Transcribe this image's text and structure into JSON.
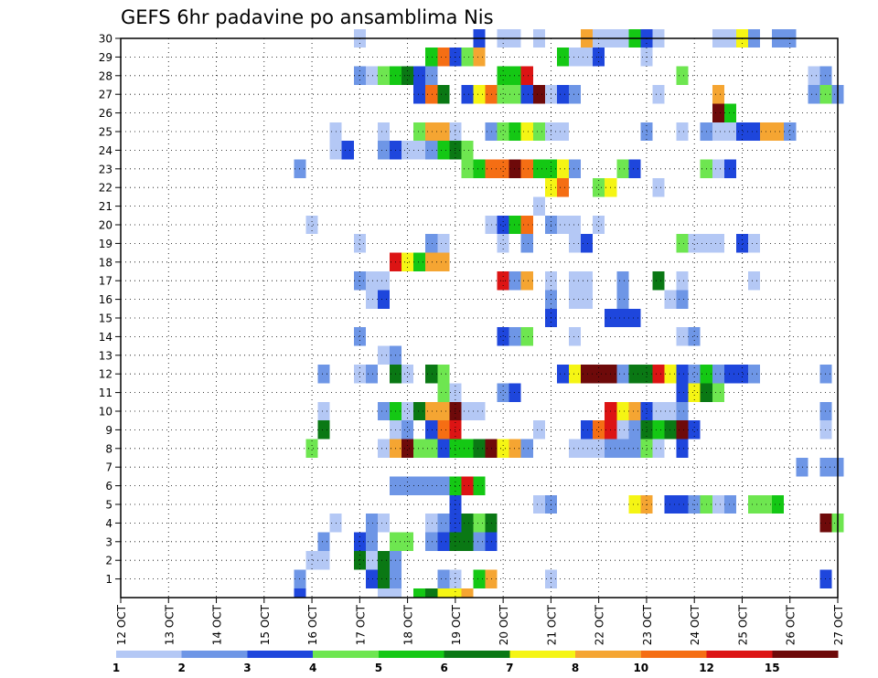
{
  "chart_data": {
    "type": "heatmap",
    "title": "GEFS 6hr padavine po ansamblima Nis",
    "x_tick_labels": [
      "12 OCT",
      "13 OCT",
      "14 OCT",
      "15 OCT",
      "16 OCT",
      "17 OCT",
      "18 OCT",
      "19 OCT",
      "20 OCT",
      "21 OCT",
      "22 OCT",
      "23 OCT",
      "24 OCT",
      "25 OCT",
      "26 OCT",
      "27 OCT"
    ],
    "y_tick_labels": [
      "1",
      "2",
      "3",
      "4",
      "5",
      "6",
      "7",
      "8",
      "9",
      "10",
      "11",
      "12",
      "13",
      "14",
      "15",
      "16",
      "17",
      "18",
      "19",
      "20",
      "21",
      "22",
      "23",
      "24",
      "25",
      "26",
      "27",
      "28",
      "29",
      "30"
    ],
    "xlim": [
      0,
      60
    ],
    "ylim": [
      0,
      30
    ],
    "grid": true,
    "colorbar": {
      "bounds": [
        "1",
        "2",
        "3",
        "4",
        "5",
        "6",
        "7",
        "8",
        "10",
        "12",
        "15",
        "20"
      ],
      "colors": [
        "#b4c8f5",
        "#6e96e6",
        "#1e46dc",
        "#6ee650",
        "#14c814",
        "#0a7814",
        "#f5f514",
        "#f5a532",
        "#f56e14",
        "#dc1414",
        "#6e0a0a"
      ]
    },
    "cells": [
      [
        15,
        1,
        1
      ],
      [
        21,
        1,
        2
      ],
      [
        22,
        1,
        5
      ],
      [
        23,
        1,
        1
      ],
      [
        27,
        1,
        1
      ],
      [
        28,
        1,
        0
      ],
      [
        30,
        1,
        4
      ],
      [
        31,
        1,
        7
      ],
      [
        36,
        1,
        0
      ],
      [
        59,
        1,
        2
      ],
      [
        16,
        2,
        0
      ],
      [
        17,
        2,
        0
      ],
      [
        20,
        2,
        5
      ],
      [
        21,
        2,
        0
      ],
      [
        22,
        2,
        5
      ],
      [
        23,
        2,
        1
      ],
      [
        17,
        3,
        1
      ],
      [
        20,
        3,
        2
      ],
      [
        21,
        3,
        1
      ],
      [
        23,
        3,
        3
      ],
      [
        24,
        3,
        3
      ],
      [
        26,
        3,
        1
      ],
      [
        27,
        3,
        2
      ],
      [
        28,
        3,
        5
      ],
      [
        29,
        3,
        5
      ],
      [
        30,
        3,
        1
      ],
      [
        31,
        3,
        2
      ],
      [
        18,
        4,
        0
      ],
      [
        21,
        4,
        1
      ],
      [
        22,
        4,
        0
      ],
      [
        26,
        4,
        0
      ],
      [
        27,
        4,
        1
      ],
      [
        28,
        4,
        2
      ],
      [
        29,
        4,
        5
      ],
      [
        30,
        4,
        3
      ],
      [
        31,
        4,
        5
      ],
      [
        59,
        4,
        10
      ],
      [
        60,
        4,
        3
      ],
      [
        28,
        5,
        2
      ],
      [
        35,
        5,
        0
      ],
      [
        36,
        5,
        1
      ],
      [
        43,
        5,
        6
      ],
      [
        44,
        5,
        7
      ],
      [
        46,
        5,
        2
      ],
      [
        47,
        5,
        2
      ],
      [
        48,
        5,
        1
      ],
      [
        49,
        5,
        3
      ],
      [
        50,
        5,
        0
      ],
      [
        51,
        5,
        1
      ],
      [
        53,
        5,
        3
      ],
      [
        54,
        5,
        3
      ],
      [
        55,
        5,
        4
      ],
      [
        23,
        6,
        1
      ],
      [
        24,
        6,
        1
      ],
      [
        25,
        6,
        1
      ],
      [
        26,
        6,
        1
      ],
      [
        27,
        6,
        1
      ],
      [
        28,
        6,
        4
      ],
      [
        29,
        6,
        9
      ],
      [
        30,
        6,
        4
      ],
      [
        57,
        7,
        1
      ],
      [
        59,
        7,
        1
      ],
      [
        60,
        7,
        1
      ],
      [
        16,
        8,
        3
      ],
      [
        22,
        8,
        0
      ],
      [
        23,
        8,
        7
      ],
      [
        24,
        8,
        10
      ],
      [
        25,
        8,
        3
      ],
      [
        26,
        8,
        3
      ],
      [
        27,
        8,
        2
      ],
      [
        28,
        8,
        4
      ],
      [
        29,
        8,
        4
      ],
      [
        30,
        8,
        5
      ],
      [
        31,
        8,
        10
      ],
      [
        32,
        8,
        6
      ],
      [
        33,
        8,
        7
      ],
      [
        34,
        8,
        1
      ],
      [
        38,
        8,
        0
      ],
      [
        39,
        8,
        0
      ],
      [
        40,
        8,
        0
      ],
      [
        41,
        8,
        1
      ],
      [
        42,
        8,
        1
      ],
      [
        43,
        8,
        1
      ],
      [
        44,
        8,
        3
      ],
      [
        45,
        8,
        0
      ],
      [
        47,
        8,
        2
      ],
      [
        17,
        9,
        5
      ],
      [
        23,
        9,
        0
      ],
      [
        24,
        9,
        1
      ],
      [
        26,
        9,
        2
      ],
      [
        27,
        9,
        8
      ],
      [
        28,
        9,
        9
      ],
      [
        35,
        9,
        0
      ],
      [
        39,
        9,
        2
      ],
      [
        40,
        9,
        8
      ],
      [
        41,
        9,
        9
      ],
      [
        42,
        9,
        0
      ],
      [
        43,
        9,
        1
      ],
      [
        44,
        9,
        5
      ],
      [
        45,
        9,
        4
      ],
      [
        46,
        9,
        5
      ],
      [
        47,
        9,
        10
      ],
      [
        48,
        9,
        2
      ],
      [
        59,
        9,
        0
      ],
      [
        17,
        10,
        0
      ],
      [
        22,
        10,
        1
      ],
      [
        23,
        10,
        4
      ],
      [
        24,
        10,
        0
      ],
      [
        25,
        10,
        5
      ],
      [
        26,
        10,
        7
      ],
      [
        27,
        10,
        7
      ],
      [
        28,
        10,
        10
      ],
      [
        29,
        10,
        0
      ],
      [
        30,
        10,
        0
      ],
      [
        41,
        10,
        9
      ],
      [
        42,
        10,
        6
      ],
      [
        43,
        10,
        7
      ],
      [
        44,
        10,
        2
      ],
      [
        45,
        10,
        0
      ],
      [
        46,
        10,
        0
      ],
      [
        47,
        10,
        1
      ],
      [
        59,
        10,
        1
      ],
      [
        27,
        11,
        3
      ],
      [
        28,
        11,
        0
      ],
      [
        32,
        11,
        1
      ],
      [
        33,
        11,
        2
      ],
      [
        47,
        11,
        2
      ],
      [
        48,
        11,
        6
      ],
      [
        49,
        11,
        5
      ],
      [
        50,
        11,
        3
      ],
      [
        17,
        12,
        1
      ],
      [
        20,
        12,
        0
      ],
      [
        21,
        12,
        1
      ],
      [
        23,
        12,
        5
      ],
      [
        24,
        12,
        0
      ],
      [
        26,
        12,
        5
      ],
      [
        27,
        12,
        3
      ],
      [
        37,
        12,
        2
      ],
      [
        38,
        12,
        6
      ],
      [
        39,
        12,
        10
      ],
      [
        40,
        12,
        10
      ],
      [
        41,
        12,
        10
      ],
      [
        42,
        12,
        1
      ],
      [
        43,
        12,
        5
      ],
      [
        44,
        12,
        5
      ],
      [
        45,
        12,
        9
      ],
      [
        46,
        12,
        6
      ],
      [
        47,
        12,
        2
      ],
      [
        48,
        12,
        1
      ],
      [
        49,
        12,
        4
      ],
      [
        50,
        12,
        1
      ],
      [
        51,
        12,
        2
      ],
      [
        52,
        12,
        2
      ],
      [
        53,
        12,
        1
      ],
      [
        59,
        12,
        1
      ],
      [
        22,
        13,
        0
      ],
      [
        23,
        13,
        1
      ],
      [
        20,
        14,
        1
      ],
      [
        32,
        14,
        2
      ],
      [
        33,
        14,
        1
      ],
      [
        34,
        14,
        3
      ],
      [
        38,
        14,
        0
      ],
      [
        47,
        14,
        0
      ],
      [
        48,
        14,
        1
      ],
      [
        36,
        15,
        2
      ],
      [
        41,
        15,
        2
      ],
      [
        42,
        15,
        2
      ],
      [
        43,
        15,
        2
      ],
      [
        21,
        16,
        0
      ],
      [
        22,
        16,
        2
      ],
      [
        36,
        16,
        1
      ],
      [
        38,
        16,
        0
      ],
      [
        39,
        16,
        0
      ],
      [
        42,
        16,
        1
      ],
      [
        46,
        16,
        0
      ],
      [
        47,
        16,
        1
      ],
      [
        20,
        17,
        1
      ],
      [
        21,
        17,
        0
      ],
      [
        22,
        17,
        0
      ],
      [
        32,
        17,
        9
      ],
      [
        33,
        17,
        1
      ],
      [
        34,
        17,
        7
      ],
      [
        36,
        17,
        0
      ],
      [
        38,
        17,
        0
      ],
      [
        39,
        17,
        0
      ],
      [
        42,
        17,
        1
      ],
      [
        45,
        17,
        5
      ],
      [
        47,
        17,
        0
      ],
      [
        53,
        17,
        0
      ],
      [
        23,
        18,
        9
      ],
      [
        24,
        18,
        6
      ],
      [
        25,
        18,
        4
      ],
      [
        26,
        18,
        7
      ],
      [
        27,
        18,
        7
      ],
      [
        20,
        19,
        0
      ],
      [
        26,
        19,
        1
      ],
      [
        27,
        19,
        0
      ],
      [
        32,
        19,
        0
      ],
      [
        34,
        19,
        1
      ],
      [
        38,
        19,
        0
      ],
      [
        39,
        19,
        2
      ],
      [
        47,
        19,
        3
      ],
      [
        48,
        19,
        0
      ],
      [
        49,
        19,
        0
      ],
      [
        50,
        19,
        0
      ],
      [
        52,
        19,
        2
      ],
      [
        53,
        19,
        0
      ],
      [
        16,
        20,
        0
      ],
      [
        31,
        20,
        0
      ],
      [
        32,
        20,
        2
      ],
      [
        33,
        20,
        4
      ],
      [
        34,
        20,
        8
      ],
      [
        36,
        20,
        1
      ],
      [
        37,
        20,
        0
      ],
      [
        38,
        20,
        0
      ],
      [
        40,
        20,
        0
      ],
      [
        35,
        21,
        0
      ],
      [
        36,
        22,
        6
      ],
      [
        37,
        22,
        8
      ],
      [
        40,
        22,
        3
      ],
      [
        41,
        22,
        6
      ],
      [
        45,
        22,
        0
      ],
      [
        15,
        23,
        1
      ],
      [
        29,
        23,
        3
      ],
      [
        30,
        23,
        4
      ],
      [
        31,
        23,
        8
      ],
      [
        32,
        23,
        8
      ],
      [
        33,
        23,
        10
      ],
      [
        34,
        23,
        8
      ],
      [
        35,
        23,
        4
      ],
      [
        36,
        23,
        4
      ],
      [
        37,
        23,
        6
      ],
      [
        38,
        23,
        1
      ],
      [
        42,
        23,
        3
      ],
      [
        43,
        23,
        2
      ],
      [
        49,
        23,
        3
      ],
      [
        50,
        23,
        0
      ],
      [
        51,
        23,
        2
      ],
      [
        18,
        24,
        0
      ],
      [
        19,
        24,
        2
      ],
      [
        22,
        24,
        1
      ],
      [
        23,
        24,
        2
      ],
      [
        24,
        24,
        0
      ],
      [
        25,
        24,
        0
      ],
      [
        26,
        24,
        1
      ],
      [
        27,
        24,
        4
      ],
      [
        28,
        24,
        5
      ],
      [
        29,
        24,
        3
      ],
      [
        18,
        25,
        0
      ],
      [
        22,
        25,
        0
      ],
      [
        25,
        25,
        3
      ],
      [
        26,
        25,
        7
      ],
      [
        27,
        25,
        7
      ],
      [
        28,
        25,
        0
      ],
      [
        31,
        25,
        1
      ],
      [
        32,
        25,
        3
      ],
      [
        33,
        25,
        4
      ],
      [
        34,
        25,
        6
      ],
      [
        35,
        25,
        3
      ],
      [
        36,
        25,
        0
      ],
      [
        37,
        25,
        0
      ],
      [
        44,
        25,
        1
      ],
      [
        47,
        25,
        0
      ],
      [
        49,
        25,
        1
      ],
      [
        50,
        25,
        0
      ],
      [
        51,
        25,
        0
      ],
      [
        52,
        25,
        2
      ],
      [
        53,
        25,
        2
      ],
      [
        54,
        25,
        7
      ],
      [
        55,
        25,
        7
      ],
      [
        56,
        25,
        1
      ],
      [
        50,
        26,
        10
      ],
      [
        51,
        26,
        4
      ],
      [
        25,
        27,
        2
      ],
      [
        26,
        27,
        8
      ],
      [
        27,
        27,
        5
      ],
      [
        29,
        27,
        2
      ],
      [
        30,
        27,
        6
      ],
      [
        31,
        27,
        8
      ],
      [
        32,
        27,
        3
      ],
      [
        33,
        27,
        3
      ],
      [
        34,
        27,
        2
      ],
      [
        35,
        27,
        10
      ],
      [
        36,
        27,
        0
      ],
      [
        37,
        27,
        2
      ],
      [
        38,
        27,
        1
      ],
      [
        45,
        27,
        0
      ],
      [
        50,
        27,
        7
      ],
      [
        58,
        27,
        1
      ],
      [
        59,
        27,
        3
      ],
      [
        60,
        27,
        1
      ],
      [
        20,
        28,
        1
      ],
      [
        21,
        28,
        0
      ],
      [
        22,
        28,
        3
      ],
      [
        23,
        28,
        4
      ],
      [
        24,
        28,
        5
      ],
      [
        25,
        28,
        2
      ],
      [
        26,
        28,
        1
      ],
      [
        32,
        28,
        4
      ],
      [
        33,
        28,
        4
      ],
      [
        34,
        28,
        9
      ],
      [
        47,
        28,
        3
      ],
      [
        58,
        28,
        0
      ],
      [
        59,
        28,
        1
      ],
      [
        26,
        29,
        4
      ],
      [
        27,
        29,
        8
      ],
      [
        28,
        29,
        2
      ],
      [
        29,
        29,
        3
      ],
      [
        30,
        29,
        7
      ],
      [
        37,
        29,
        4
      ],
      [
        38,
        29,
        0
      ],
      [
        39,
        29,
        0
      ],
      [
        40,
        29,
        2
      ],
      [
        44,
        29,
        0
      ],
      [
        20,
        30,
        0
      ],
      [
        30,
        30,
        2
      ],
      [
        32,
        30,
        0
      ],
      [
        33,
        30,
        0
      ],
      [
        35,
        30,
        0
      ],
      [
        39,
        30,
        7
      ],
      [
        40,
        30,
        0
      ],
      [
        41,
        30,
        0
      ],
      [
        42,
        30,
        0
      ],
      [
        43,
        30,
        4
      ],
      [
        44,
        30,
        2
      ],
      [
        45,
        30,
        0
      ],
      [
        50,
        30,
        0
      ],
      [
        51,
        30,
        0
      ],
      [
        52,
        30,
        6
      ],
      [
        53,
        30,
        1
      ],
      [
        55,
        30,
        1
      ],
      [
        56,
        30,
        1
      ]
    ],
    "bottom_row": [
      [
        15,
        0,
        2
      ],
      [
        22,
        0,
        0
      ],
      [
        23,
        0,
        0
      ],
      [
        25,
        0,
        4
      ],
      [
        26,
        0,
        5
      ],
      [
        27,
        0,
        6
      ],
      [
        28,
        0,
        6
      ],
      [
        29,
        0,
        7
      ]
    ]
  }
}
